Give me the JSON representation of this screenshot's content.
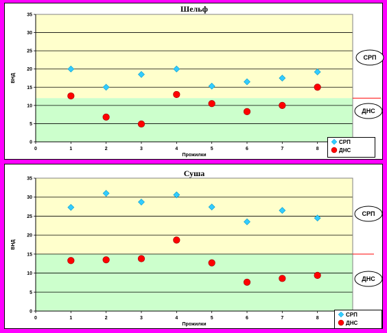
{
  "colors": {
    "background": "#ff00ff",
    "upper_zone": "#ffffcc",
    "lower_zone": "#ccffcc",
    "srp_marker": "#33ccff",
    "dns_marker": "#ff0000",
    "boundary_line": "#ff0000"
  },
  "chart_data": [
    {
      "type": "scatter",
      "title": "Шельф",
      "xlabel": "Прожилки",
      "ylabel": "ВНД",
      "xlim": [
        0,
        9
      ],
      "ylim": [
        0,
        35
      ],
      "x_ticks": [
        0,
        1,
        2,
        3,
        4,
        5,
        6,
        7,
        8
      ],
      "y_ticks": [
        0,
        5,
        10,
        15,
        20,
        25,
        30,
        35
      ],
      "grid": true,
      "boundary_y": 12,
      "legend_position": "bottom-right",
      "zone_labels": [
        "СРП",
        "ДНС"
      ],
      "series": [
        {
          "name": "СРП",
          "marker": "diamond",
          "x": [
            1,
            2,
            3,
            4,
            5,
            6,
            7,
            8
          ],
          "y": [
            20,
            15,
            18.5,
            20,
            15.3,
            16.5,
            17.5,
            19.2
          ]
        },
        {
          "name": "ДНС",
          "marker": "circle",
          "x": [
            1,
            2,
            3,
            4,
            5,
            6,
            7,
            8
          ],
          "y": [
            12.6,
            6.8,
            4.9,
            13,
            10.5,
            8.3,
            10,
            15
          ]
        }
      ]
    },
    {
      "type": "scatter",
      "title": "Суша",
      "xlabel": "Прожилки",
      "ylabel": "ВНД",
      "xlim": [
        0,
        9
      ],
      "ylim": [
        0,
        35
      ],
      "x_ticks": [
        0,
        1,
        2,
        3,
        4,
        5,
        6,
        7,
        8
      ],
      "y_ticks": [
        0,
        5,
        10,
        15,
        20,
        25,
        30,
        35
      ],
      "grid": true,
      "boundary_y": 15,
      "legend_position": "bottom-right",
      "zone_labels": [
        "СРП",
        "ДНС"
      ],
      "series": [
        {
          "name": "СРП",
          "marker": "diamond",
          "x": [
            1,
            2,
            3,
            4,
            5,
            6,
            7,
            8
          ],
          "y": [
            27.3,
            31,
            28.7,
            30.6,
            27.4,
            23.5,
            26.5,
            24.5
          ]
        },
        {
          "name": "ДНС",
          "marker": "circle",
          "x": [
            1,
            2,
            3,
            4,
            5,
            6,
            7,
            8
          ],
          "y": [
            13.3,
            13.5,
            13.8,
            18.7,
            12.7,
            7.6,
            8.6,
            9.4
          ]
        }
      ]
    }
  ]
}
